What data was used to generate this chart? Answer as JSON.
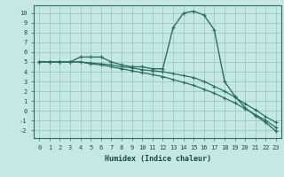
{
  "xlabel": "Humidex (Indice chaleur)",
  "background_color": "#c5e8e5",
  "grid_color": "#9ecfca",
  "line_color": "#2d6e65",
  "xlim": [
    -0.5,
    23.5
  ],
  "ylim": [
    -2.8,
    10.8
  ],
  "xticks": [
    0,
    1,
    2,
    3,
    4,
    5,
    6,
    7,
    8,
    9,
    10,
    11,
    12,
    13,
    14,
    15,
    16,
    17,
    18,
    19,
    20,
    21,
    22,
    23
  ],
  "yticks": [
    -2,
    -1,
    0,
    1,
    2,
    3,
    4,
    5,
    6,
    7,
    8,
    9,
    10
  ],
  "line1": [
    5.0,
    5.0,
    5.0,
    5.0,
    5.5,
    5.5,
    5.5,
    5.0,
    4.7,
    4.5,
    4.5,
    4.3,
    4.3,
    8.5,
    10.0,
    10.2,
    9.8,
    8.3,
    3.0,
    1.5,
    0.3,
    -0.5,
    -1.2,
    -2.1
  ],
  "line2": [
    5.0,
    5.0,
    5.0,
    5.0,
    5.0,
    4.9,
    4.8,
    4.7,
    4.5,
    4.4,
    4.2,
    4.1,
    4.0,
    3.8,
    3.6,
    3.4,
    3.0,
    2.5,
    2.0,
    1.4,
    0.7,
    0.1,
    -0.6,
    -1.2
  ],
  "line3": [
    5.0,
    5.0,
    5.0,
    5.0,
    5.0,
    4.8,
    4.7,
    4.5,
    4.3,
    4.1,
    3.9,
    3.7,
    3.5,
    3.2,
    2.9,
    2.6,
    2.2,
    1.8,
    1.3,
    0.8,
    0.2,
    -0.4,
    -1.0,
    -1.7
  ]
}
